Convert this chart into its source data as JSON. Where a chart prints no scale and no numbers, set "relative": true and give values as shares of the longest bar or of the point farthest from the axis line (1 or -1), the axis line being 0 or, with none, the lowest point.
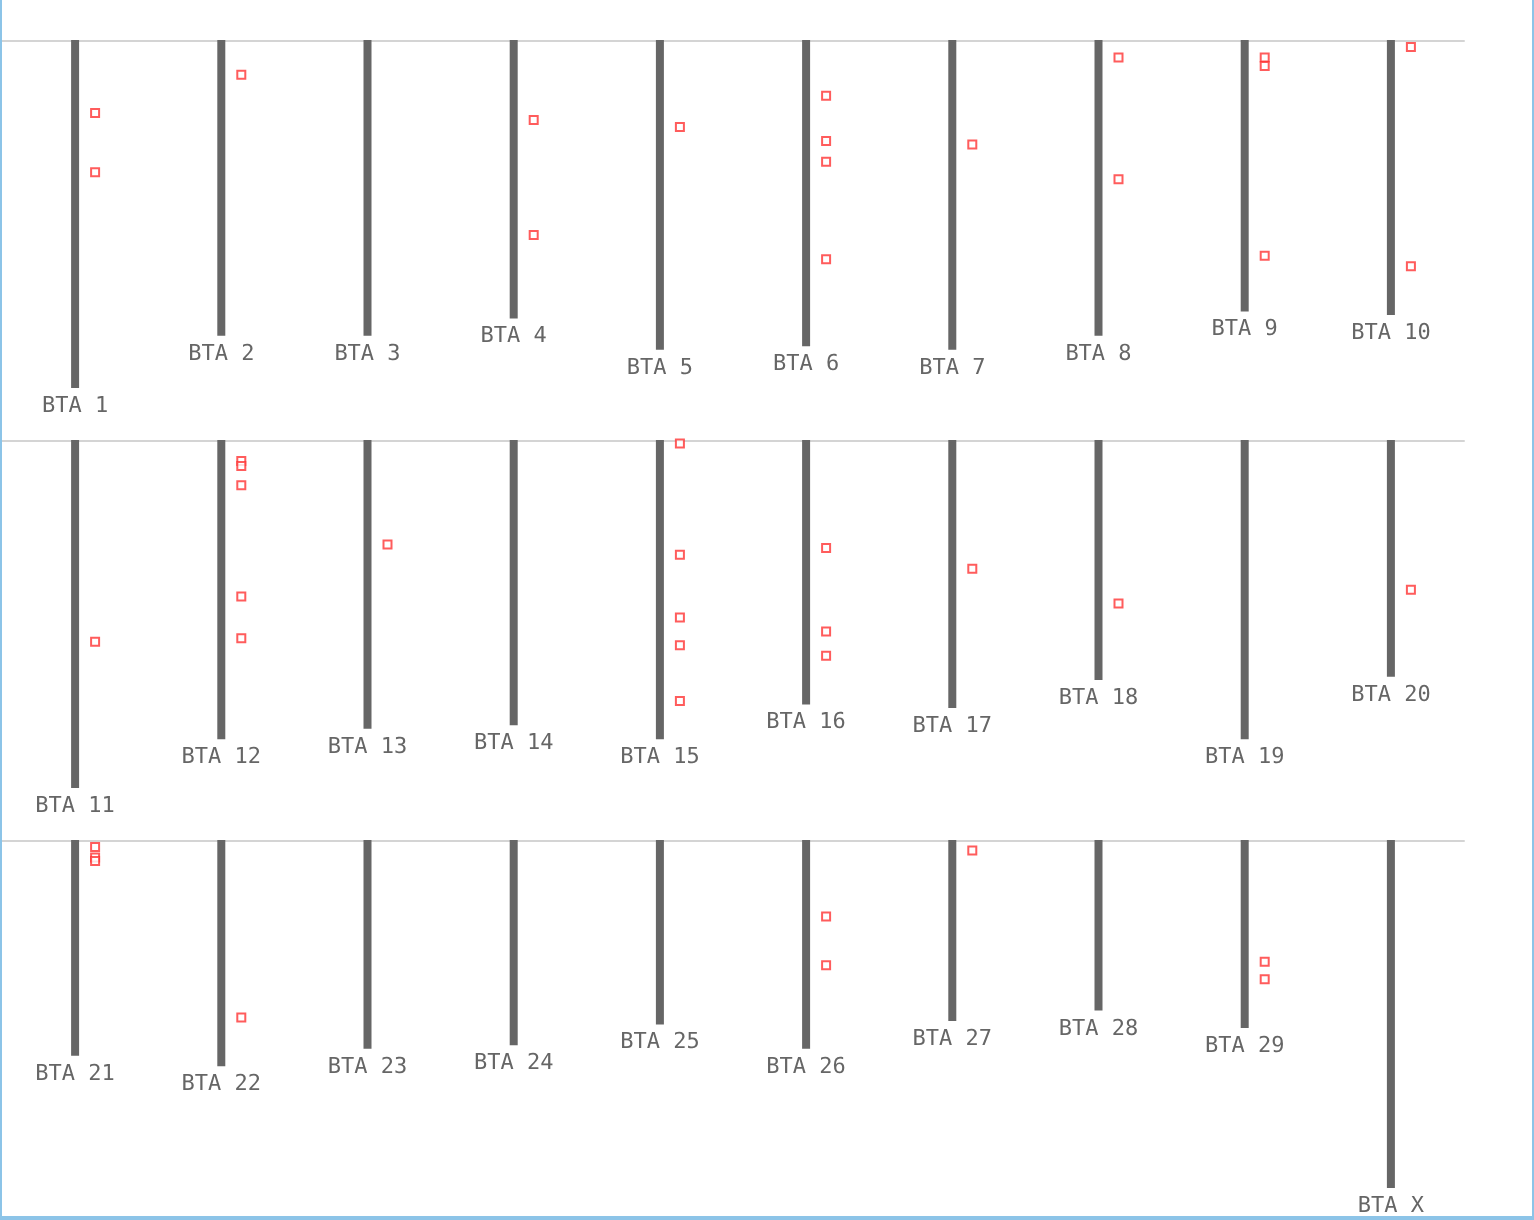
{
  "chart_data": [
    {
      "type": "bar",
      "relative": true,
      "categories": [
        "BTA 1",
        "BTA 2",
        "BTA 3",
        "BTA 4",
        "BTA 5",
        "BTA 6",
        "BTA 7",
        "BTA 8",
        "BTA 9",
        "BTA 10"
      ],
      "series": [
        {
          "type": "bar",
          "color": "#666666",
          "values": [
            -1,
            -0.85,
            -0.85,
            -0.8,
            -0.89,
            -0.88,
            -0.89,
            -0.85,
            -0.78,
            -0.79
          ]
        },
        {
          "type": "scatter",
          "color": "#ff3333",
          "marker": "square",
          "x": [
            "BTA 1",
            "BTA 1",
            "BTA 2",
            "BTA 4",
            "BTA 4",
            "BTA 5",
            "BTA 6",
            "BTA 6",
            "BTA 6",
            "BTA 6",
            "BTA 7",
            "BTA 8",
            "BTA 8",
            "BTA 9",
            "BTA 9",
            "BTA 9",
            "BTA 10",
            "BTA 10"
          ],
          "values": [
            -0.21,
            -0.38,
            -0.1,
            -0.23,
            -0.56,
            -0.25,
            -0.16,
            -0.29,
            -0.35,
            -0.63,
            -0.3,
            -0.05,
            -0.4,
            -0.05,
            -0.075,
            -0.62,
            -0.02,
            -0.65
          ]
        }
      ]
    },
    {
      "type": "bar",
      "relative": true,
      "categories": [
        "BTA 11",
        "BTA 12",
        "BTA 13",
        "BTA 14",
        "BTA 15",
        "BTA 16",
        "BTA 17",
        "BTA 18",
        "BTA 19",
        "BTA 20"
      ],
      "series": [
        {
          "type": "bar",
          "color": "#666666",
          "values": [
            -1,
            -0.86,
            -0.83,
            -0.82,
            -0.86,
            -0.76,
            -0.77,
            -0.69,
            -0.86,
            -0.68
          ]
        },
        {
          "type": "scatter",
          "color": "#ff3333",
          "marker": "square",
          "x": [
            "BTA 11",
            "BTA 12",
            "BTA 12",
            "BTA 12",
            "BTA 12",
            "BTA 12",
            "BTA 13",
            "BTA 15",
            "BTA 15",
            "BTA 15",
            "BTA 15",
            "BTA 15",
            "BTA 16",
            "BTA 16",
            "BTA 16",
            "BTA 17",
            "BTA 18",
            "BTA 20"
          ],
          "values": [
            -0.58,
            -0.06,
            -0.075,
            -0.13,
            -0.45,
            -0.57,
            -0.3,
            -0.01,
            -0.33,
            -0.51,
            -0.59,
            -0.75,
            -0.31,
            -0.55,
            -0.62,
            -0.37,
            -0.47,
            -0.43
          ]
        }
      ]
    },
    {
      "type": "bar",
      "relative": true,
      "categories": [
        "BTA 21",
        "BTA 22",
        "BTA 23",
        "BTA 24",
        "BTA 25",
        "BTA 26",
        "BTA 27",
        "BTA 28",
        "BTA 29",
        "BTA X"
      ],
      "series": [
        {
          "type": "bar",
          "color": "#666666",
          "values": [
            -0.62,
            -0.65,
            -0.6,
            -0.59,
            -0.53,
            -0.6,
            -0.52,
            -0.49,
            -0.54,
            -1
          ]
        },
        {
          "type": "scatter",
          "color": "#ff3333",
          "marker": "square",
          "x": [
            "BTA 21",
            "BTA 21",
            "BTA 21",
            "BTA 22",
            "BTA 26",
            "BTA 26",
            "BTA 27",
            "BTA 29",
            "BTA 29"
          ],
          "values": [
            -0.02,
            -0.05,
            -0.06,
            -0.51,
            -0.22,
            -0.36,
            -0.03,
            -0.35,
            -0.4
          ]
        }
      ]
    }
  ]
}
